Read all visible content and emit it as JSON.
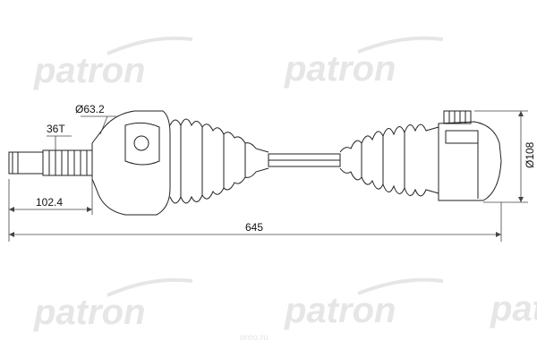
{
  "watermark": {
    "brand": "patron",
    "site": "oreo.ru"
  },
  "dimensions": {
    "inner_joint_diameter": "Ø63.2",
    "spline_count": "36T",
    "stub_length": "102.4",
    "overall_length": "645",
    "outer_joint_diameter": "Ø108"
  }
}
